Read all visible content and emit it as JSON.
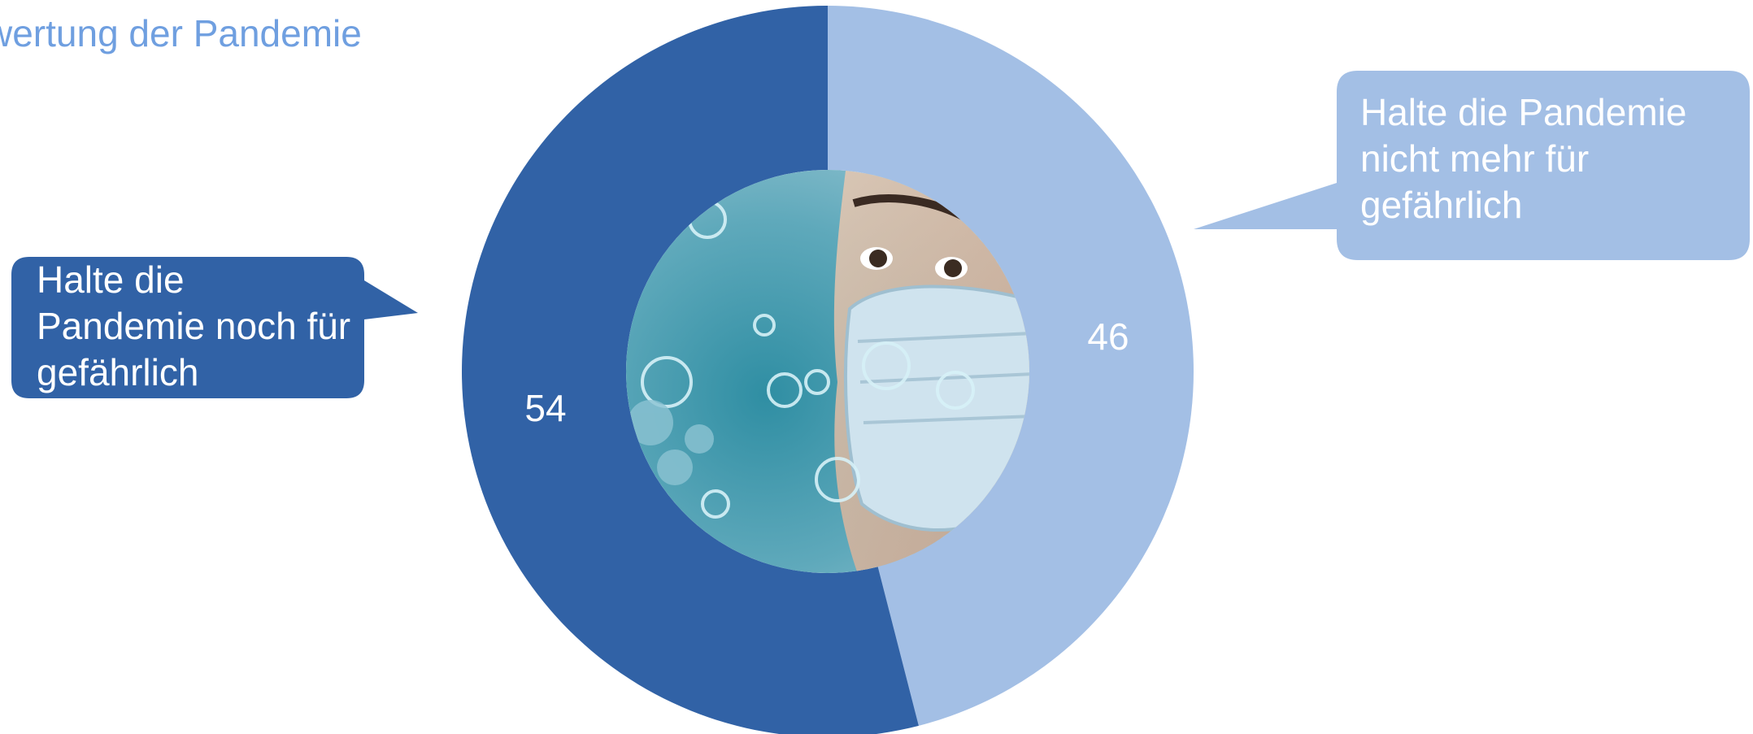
{
  "chart_data": {
    "type": "pie",
    "title": "wertung der Pandemie",
    "slices": [
      {
        "label": "Halte die Pandemie nicht mehr für gefährlich",
        "value": 46,
        "display": "46",
        "color": "#a3bfe5"
      },
      {
        "label": "Halte die Pandemie noch für gefährlich",
        "value": 54,
        "display": "54",
        "color": "#3162a6"
      }
    ],
    "hole_image": "masked-face-virus-photo"
  }
}
